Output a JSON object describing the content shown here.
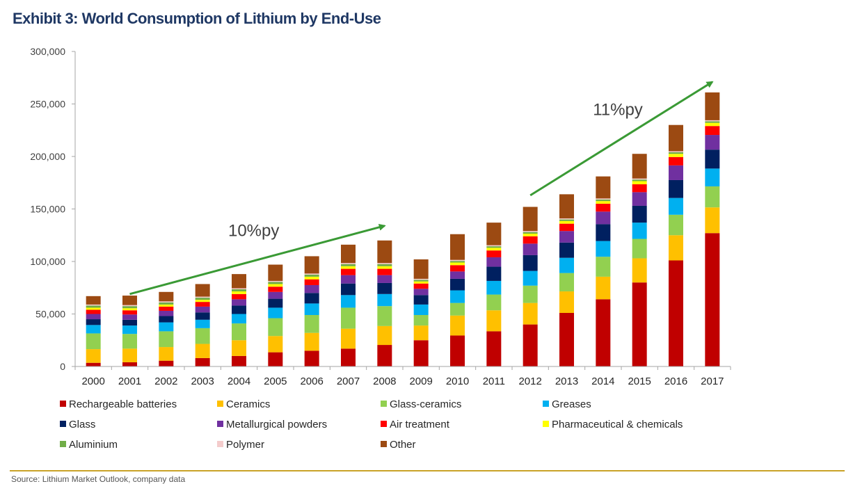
{
  "page": {
    "title": "Exhibit 3: World Consumption of Lithium by End-Use",
    "source": "Source: Lithium Market Outlook, company data"
  },
  "chart_data": {
    "type": "bar",
    "stacked": true,
    "title": "Exhibit 3: World Consumption of Lithium by End-Use",
    "xlabel": "",
    "ylabel": "",
    "ylim": [
      0,
      300000
    ],
    "yticks": [
      0,
      50000,
      100000,
      150000,
      200000,
      250000,
      300000
    ],
    "ytick_labels": [
      "0",
      "50,000",
      "100,000",
      "150,000",
      "200,000",
      "250,000",
      "300,000"
    ],
    "grid": false,
    "legend_position": "bottom",
    "categories": [
      "2000",
      "2001",
      "2002",
      "2003",
      "2004",
      "2005",
      "2006",
      "2007",
      "2008",
      "2009",
      "2010",
      "2011",
      "2012",
      "2013",
      "2014",
      "2015",
      "2016",
      "2017"
    ],
    "series": [
      {
        "name": "Rechargeable batteries",
        "color": "#c00000",
        "values": [
          3500,
          4000,
          5500,
          8000,
          10000,
          13500,
          15000,
          17000,
          20500,
          25000,
          29500,
          33500,
          40000,
          51000,
          64000,
          80000,
          101000,
          127000
        ]
      },
      {
        "name": "Ceramics",
        "color": "#ffc000",
        "values": [
          13000,
          13000,
          13000,
          13500,
          15000,
          15500,
          17000,
          19000,
          18000,
          14000,
          19000,
          20000,
          20500,
          20500,
          21500,
          23000,
          24000,
          24500
        ]
      },
      {
        "name": "Glass-ceramics",
        "color": "#92d050",
        "values": [
          15000,
          14000,
          15000,
          15000,
          16000,
          17000,
          17000,
          20000,
          19000,
          10000,
          12000,
          15000,
          16500,
          17500,
          19000,
          18500,
          19500,
          20000
        ]
      },
      {
        "name": "Greases",
        "color": "#00b0f0",
        "values": [
          8000,
          8000,
          8500,
          8000,
          9000,
          10000,
          11000,
          12000,
          11500,
          10000,
          12000,
          13000,
          14000,
          14500,
          15000,
          15500,
          16000,
          17000
        ]
      },
      {
        "name": "Glass",
        "color": "#002060",
        "values": [
          5500,
          5500,
          6000,
          7000,
          8000,
          8500,
          10000,
          11000,
          10500,
          9000,
          11000,
          13500,
          15000,
          14500,
          16000,
          16000,
          17000,
          18000
        ]
      },
      {
        "name": "Metallurgical powders",
        "color": "#7030a0",
        "values": [
          5000,
          5000,
          5000,
          5500,
          6000,
          6500,
          7500,
          8000,
          7500,
          6000,
          7000,
          9000,
          11000,
          11000,
          12000,
          13000,
          14000,
          14000
        ]
      },
      {
        "name": "Air treatment",
        "color": "#ff0000",
        "values": [
          4000,
          4000,
          4000,
          4500,
          5000,
          5000,
          5500,
          6000,
          6000,
          5000,
          6000,
          6500,
          7000,
          7000,
          7500,
          7500,
          8000,
          8500
        ]
      },
      {
        "name": "Pharmaceutical & chemicals",
        "color": "#ffff00",
        "values": [
          2000,
          2000,
          2000,
          2000,
          2500,
          2500,
          2500,
          2500,
          2500,
          2000,
          2500,
          2500,
          2500,
          2500,
          2500,
          3000,
          3000,
          3000
        ]
      },
      {
        "name": "Aluminium",
        "color": "#70ad47",
        "values": [
          2000,
          2000,
          2000,
          2000,
          2000,
          2000,
          2000,
          2000,
          2000,
          1500,
          1500,
          1500,
          1500,
          1500,
          1500,
          1500,
          1500,
          1500
        ]
      },
      {
        "name": "Polymer",
        "color": "#f4cccc",
        "values": [
          1000,
          1000,
          1000,
          1000,
          1000,
          1000,
          1000,
          1000,
          1000,
          1000,
          1000,
          1000,
          1000,
          1000,
          1000,
          1000,
          1000,
          1000
        ]
      },
      {
        "name": "Other",
        "color": "#9c4a12",
        "values": [
          8000,
          9000,
          9000,
          12000,
          13500,
          15500,
          16500,
          17500,
          21500,
          18500,
          24500,
          21500,
          23000,
          23000,
          21000,
          23500,
          25000,
          26500
        ]
      }
    ],
    "annotations": [
      {
        "text": "10%py",
        "from": [
          "2001",
          69000
        ],
        "to": [
          "2008",
          134000
        ],
        "color": "#3a9a35"
      },
      {
        "text": "11%py",
        "from": [
          "2012",
          163000
        ],
        "to": [
          "2017",
          271000
        ],
        "color": "#3a9a35"
      }
    ]
  }
}
